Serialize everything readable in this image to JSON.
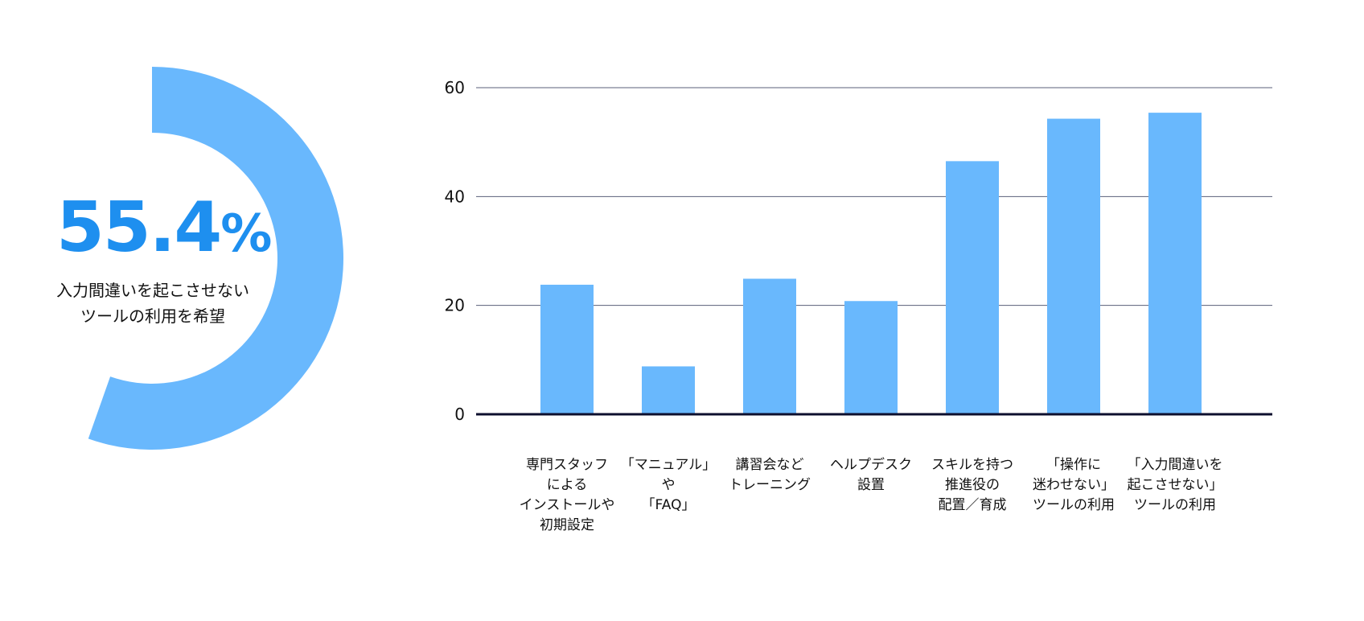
{
  "donut": {
    "value_number": "55.4",
    "value_unit": "%",
    "fraction": 0.554,
    "caption_line1": "入力間違いを起こさせない",
    "caption_line2": "ツールの利用を希望",
    "color": "#69b8fd",
    "text_color": "#1e8fef"
  },
  "chart_data": {
    "type": "bar",
    "categories": [
      [
        "専門スタッフ",
        "による",
        "インストールや",
        "初期設定"
      ],
      [
        "「マニュアル」",
        "や",
        "「FAQ」"
      ],
      [
        "講習会など",
        "トレーニング"
      ],
      [
        "ヘルプデスク",
        "設置"
      ],
      [
        "スキルを持つ",
        "推進役の",
        "配置／育成"
      ],
      [
        "「操作に",
        "迷わせない」",
        "ツールの利用"
      ],
      [
        "「入力間違いを",
        "起こさせない」",
        "ツールの利用"
      ]
    ],
    "values": [
      23.8,
      8.8,
      24.9,
      20.8,
      46.5,
      54.3,
      55.4
    ],
    "yticks": [
      "0",
      "20",
      "40",
      "60"
    ],
    "ylim": [
      0,
      60
    ],
    "grid": true,
    "bar_color": "#69b8fd"
  }
}
